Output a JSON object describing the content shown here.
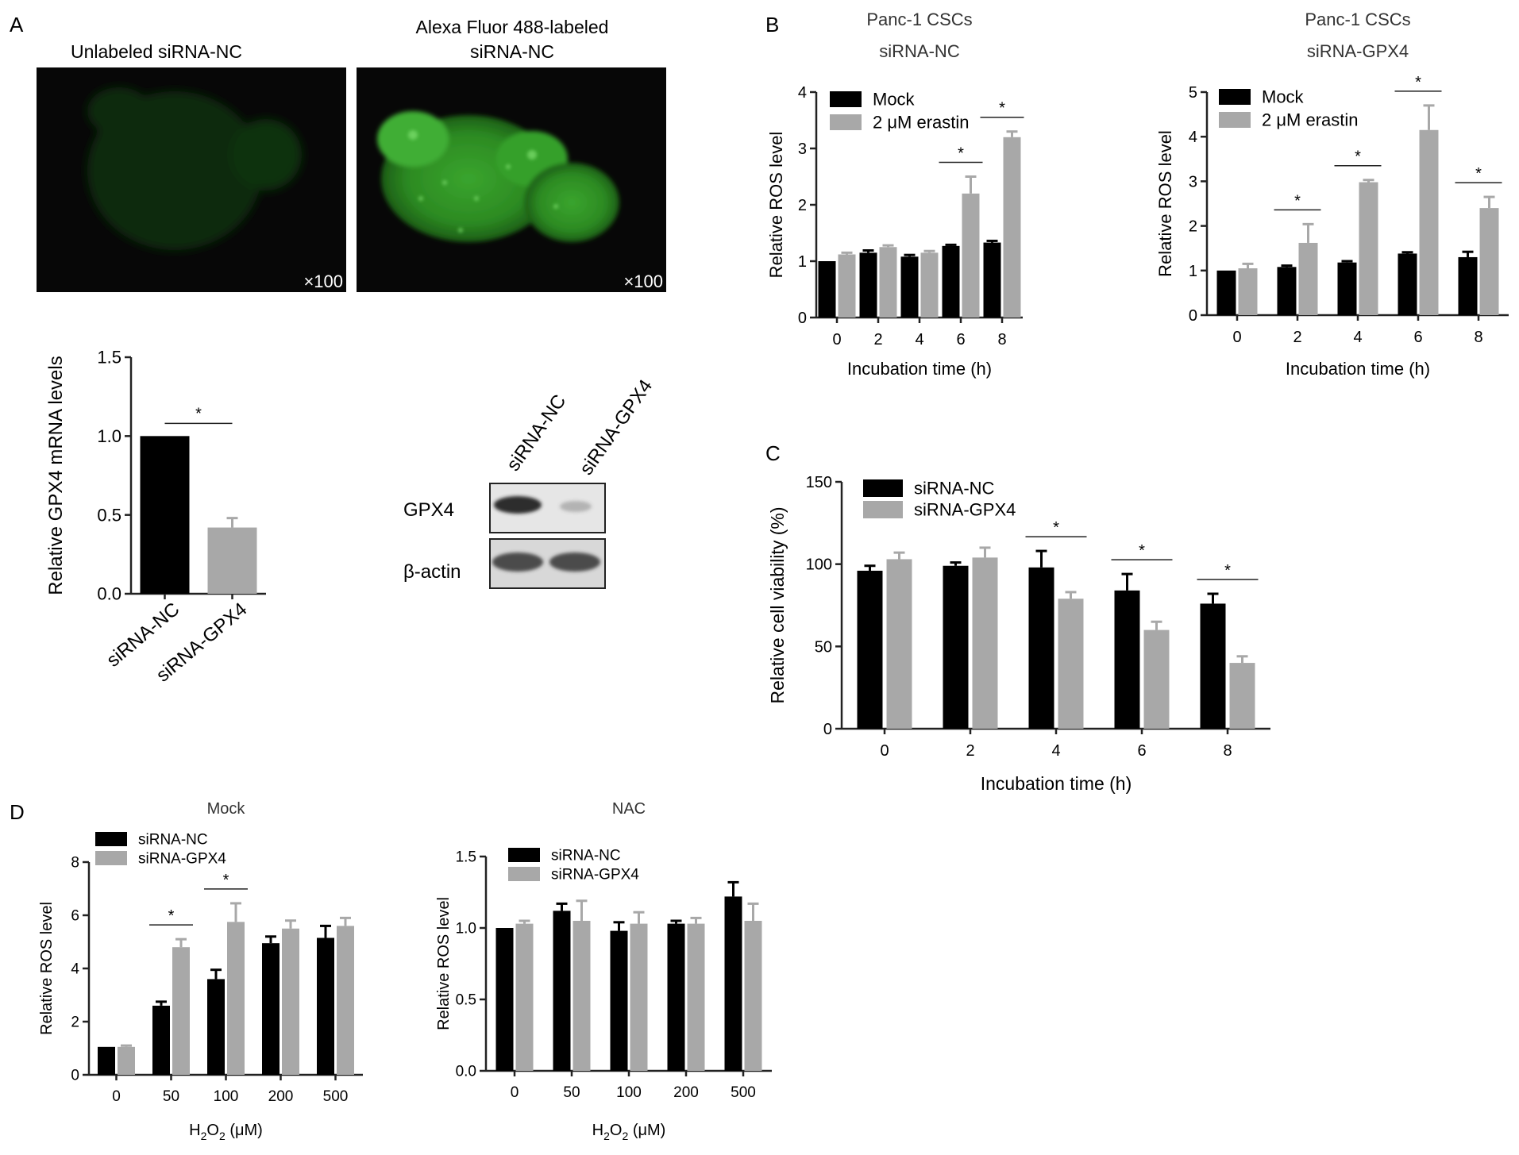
{
  "panel_labels": {
    "A": "A",
    "B": "B",
    "C": "C",
    "D": "D"
  },
  "colors": {
    "black_bar": "#000000",
    "gray_bar": "#a8a8a8",
    "fluor_green": "#3a9a2a"
  },
  "micrographs": [
    {
      "title_lines": [
        "Unlabeled siRNA-NC"
      ],
      "magnification": "×100",
      "signal": "dim"
    },
    {
      "title_lines": [
        "Alexa Fluor 488-labeled",
        "siRNA-NC"
      ],
      "magnification": "×100",
      "signal": "bright"
    }
  ],
  "western_blot": {
    "lanes": [
      "siRNA-NC",
      "siRNA-GPX4"
    ],
    "rows": [
      {
        "label": "GPX4",
        "band_intensity": [
          0.95,
          0.15
        ]
      },
      {
        "label": "β-actin",
        "band_intensity": [
          0.8,
          0.8
        ]
      }
    ]
  },
  "chart_data": [
    {
      "id": "A-mrna",
      "type": "bar",
      "title": [],
      "ylabel": "Relative GPX4 mRNA  levels",
      "xlabel": "",
      "categories": [
        "siRNA-NC",
        "siRNA-GPX4"
      ],
      "colors": [
        "#000000",
        "#a8a8a8"
      ],
      "series": [
        {
          "values": [
            1.0,
            0.42
          ],
          "errors": [
            0,
            0.06
          ]
        }
      ],
      "ylim": [
        0,
        1.5
      ],
      "yticks": [
        "0.0",
        "0.5",
        "1.0",
        "1.5"
      ],
      "legend": [],
      "significance": [
        {
          "from": 0,
          "to": 1,
          "label": "*"
        }
      ]
    },
    {
      "id": "B-left",
      "type": "bar",
      "title": [
        "Panc-1 CSCs",
        "siRNA-NC"
      ],
      "ylabel": "Relative ROS level",
      "xlabel": "Incubation time (h)",
      "categories": [
        "0",
        "2",
        "4",
        "6",
        "8"
      ],
      "series": [
        {
          "name": "Mock",
          "color": "#000000",
          "values": [
            1.0,
            1.15,
            1.08,
            1.27,
            1.33
          ],
          "errors": [
            0,
            0.04,
            0.03,
            0.02,
            0.03
          ]
        },
        {
          "name": "2 μM erastin",
          "color": "#a8a8a8",
          "values": [
            1.12,
            1.25,
            1.15,
            2.2,
            3.2
          ],
          "errors": [
            0.03,
            0.03,
            0.03,
            0.3,
            0.1
          ]
        }
      ],
      "ylim": [
        0,
        4
      ],
      "yticks": [
        "0",
        "1",
        "2",
        "3",
        "4"
      ],
      "legend": "top-left",
      "significance": [
        {
          "category": 3,
          "label": "*"
        },
        {
          "category": 4,
          "label": "*"
        }
      ]
    },
    {
      "id": "B-right",
      "type": "bar",
      "title": [
        "Panc-1 CSCs",
        "siRNA-GPX4"
      ],
      "ylabel": "Relative ROS level",
      "xlabel": "Incubation time (h)",
      "categories": [
        "0",
        "2",
        "4",
        "6",
        "8"
      ],
      "series": [
        {
          "name": "Mock",
          "color": "#000000",
          "values": [
            1.0,
            1.08,
            1.18,
            1.38,
            1.3
          ],
          "errors": [
            0,
            0.03,
            0.03,
            0.03,
            0.12
          ]
        },
        {
          "name": "2 μM erastin",
          "color": "#a8a8a8",
          "values": [
            1.05,
            1.62,
            2.98,
            4.15,
            2.4
          ],
          "errors": [
            0.1,
            0.42,
            0.05,
            0.55,
            0.25
          ]
        }
      ],
      "ylim": [
        0,
        5
      ],
      "yticks": [
        "0",
        "1",
        "2",
        "3",
        "4",
        "5"
      ],
      "legend": "top-left",
      "significance": [
        {
          "category": 1,
          "label": "*"
        },
        {
          "category": 2,
          "label": "*"
        },
        {
          "category": 3,
          "label": "*"
        },
        {
          "category": 4,
          "label": "*"
        }
      ]
    },
    {
      "id": "C",
      "type": "bar",
      "title": [],
      "ylabel": "Relative cell viability (%)",
      "xlabel": "Incubation time (h)",
      "categories": [
        "0",
        "2",
        "4",
        "6",
        "8"
      ],
      "series": [
        {
          "name": "siRNA-NC",
          "color": "#000000",
          "values": [
            96,
            99,
            98,
            84,
            76
          ],
          "errors": [
            3,
            2,
            10,
            10,
            6
          ]
        },
        {
          "name": "siRNA-GPX4",
          "color": "#a8a8a8",
          "values": [
            103,
            104,
            79,
            60,
            40
          ],
          "errors": [
            4,
            6,
            4,
            5,
            4
          ]
        }
      ],
      "ylim": [
        0,
        150
      ],
      "yticks": [
        "0",
        "50",
        "100",
        "150"
      ],
      "legend": "top-left",
      "significance": [
        {
          "category": 2,
          "label": "*"
        },
        {
          "category": 3,
          "label": "*"
        },
        {
          "category": 4,
          "label": "*"
        }
      ]
    },
    {
      "id": "D-mock",
      "type": "bar",
      "title": [
        "Mock"
      ],
      "ylabel": "Relative ROS level",
      "xlabel": "H2O2 (μM)",
      "xlabel_parts": [
        "H",
        "2",
        "O",
        "2",
        " (μM)"
      ],
      "categories": [
        "0",
        "50",
        "100",
        "200",
        "500"
      ],
      "series": [
        {
          "name": "siRNA-NC",
          "color": "#000000",
          "values": [
            1.05,
            2.6,
            3.6,
            4.95,
            5.15
          ],
          "errors": [
            0,
            0.15,
            0.35,
            0.25,
            0.45
          ]
        },
        {
          "name": "siRNA-GPX4",
          "color": "#a8a8a8",
          "values": [
            1.05,
            4.8,
            5.75,
            5.5,
            5.6
          ],
          "errors": [
            0.05,
            0.3,
            0.7,
            0.3,
            0.3
          ]
        }
      ],
      "ylim": [
        0,
        8
      ],
      "yticks": [
        "0",
        "2",
        "4",
        "6",
        "8"
      ],
      "legend": "top-left",
      "significance": [
        {
          "category": 1,
          "label": "*"
        },
        {
          "category": 2,
          "label": "*"
        }
      ]
    },
    {
      "id": "D-nac",
      "type": "bar",
      "title": [
        "NAC"
      ],
      "ylabel": "Relative ROS level",
      "xlabel": "H2O2 (μM)",
      "xlabel_parts": [
        "H",
        "2",
        "O",
        "2",
        " (μM)"
      ],
      "categories": [
        "0",
        "50",
        "100",
        "200",
        "500"
      ],
      "series": [
        {
          "name": "siRNA-NC",
          "color": "#000000",
          "values": [
            1.0,
            1.12,
            0.98,
            1.03,
            1.22
          ],
          "errors": [
            0,
            0.05,
            0.06,
            0.02,
            0.1
          ]
        },
        {
          "name": "siRNA-GPX4",
          "color": "#a8a8a8",
          "values": [
            1.03,
            1.05,
            1.03,
            1.03,
            1.05
          ],
          "errors": [
            0.02,
            0.14,
            0.08,
            0.04,
            0.12
          ]
        }
      ],
      "ylim": [
        0,
        1.5
      ],
      "yticks": [
        "0.0",
        "0.5",
        "1.0",
        "1.5"
      ],
      "legend": "top-left",
      "significance": []
    }
  ]
}
